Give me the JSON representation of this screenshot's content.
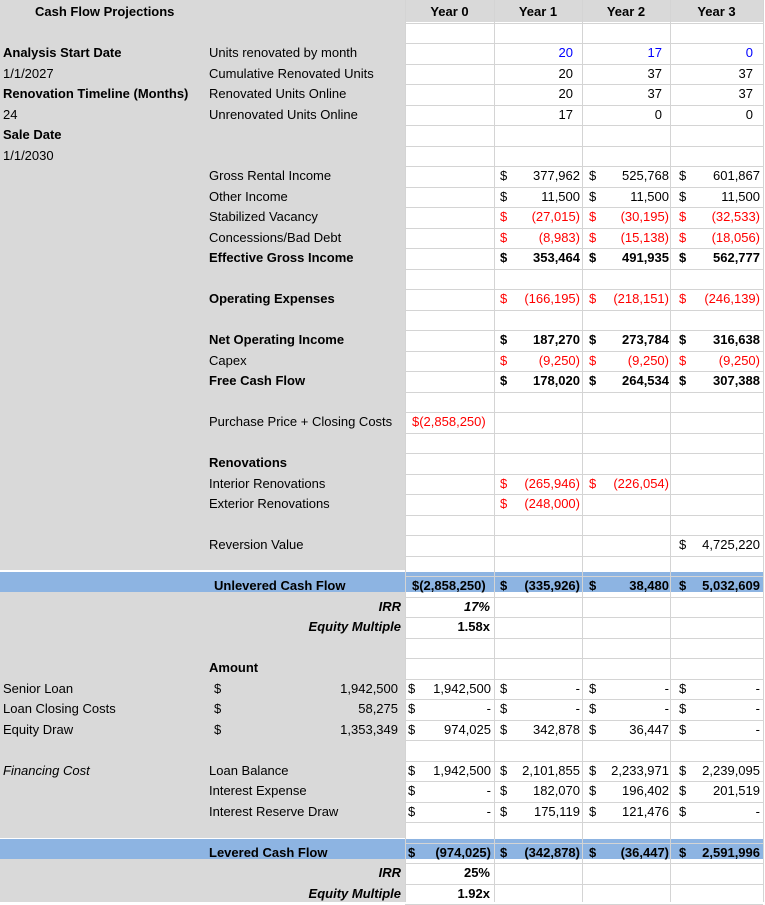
{
  "header": {
    "title": "Cash Flow Projections",
    "years": [
      "Year 0",
      "Year 1",
      "Year 2",
      "Year 3"
    ]
  },
  "assumptions": {
    "start_label": "Analysis Start Date",
    "start_value": "1/1/2027",
    "timeline_label": "Renovation Timeline (Months)",
    "timeline_value": "24",
    "sale_label": "Sale Date",
    "sale_value": "1/1/2030"
  },
  "units": [
    {
      "label": "Units renovated by month",
      "values": [
        "20",
        "17",
        "0"
      ],
      "color": "#0000ff"
    },
    {
      "label": "Cumulative Renovated Units",
      "values": [
        "20",
        "37",
        "37"
      ],
      "color": "#000000"
    },
    {
      "label": "Renovated Units Online",
      "values": [
        "20",
        "37",
        "37"
      ],
      "color": "#000000"
    },
    {
      "label": "Unrenovated Units Online",
      "values": [
        "17",
        "0",
        "0"
      ],
      "color": "#000000"
    }
  ],
  "income": [
    {
      "label": "Gross Rental Income",
      "values": [
        "377,962",
        "525,768",
        "601,867"
      ],
      "bold": false,
      "red": false
    },
    {
      "label": "Other Income",
      "values": [
        "11,500",
        "11,500",
        "11,500"
      ],
      "bold": false,
      "red": false
    },
    {
      "label": "Stabilized Vacancy",
      "values": [
        "(27,015)",
        "(30,195)",
        "(32,533)"
      ],
      "bold": false,
      "red": true
    },
    {
      "label": "Concessions/Bad Debt",
      "values": [
        "(8,983)",
        "(15,138)",
        "(18,056)"
      ],
      "bold": false,
      "red": true
    },
    {
      "label": "Effective Gross Income",
      "values": [
        "353,464",
        "491,935",
        "562,777"
      ],
      "bold": true,
      "red": false
    }
  ],
  "opex": {
    "label": "Operating Expenses",
    "values": [
      "(166,195)",
      "(218,151)",
      "(246,139)"
    ]
  },
  "noi_block": [
    {
      "label": "Net Operating Income",
      "values": [
        "187,270",
        "273,784",
        "316,638"
      ],
      "bold": true,
      "red": false
    },
    {
      "label": "Capex",
      "values": [
        "(9,250)",
        "(9,250)",
        "(9,250)"
      ],
      "bold": false,
      "red": true
    },
    {
      "label": "Free Cash Flow",
      "values": [
        "178,020",
        "264,534",
        "307,388"
      ],
      "bold": true,
      "red": false
    }
  ],
  "purchase": {
    "label": "Purchase Price + Closing Costs",
    "value": "$(2,858,250)"
  },
  "renovations": {
    "title": "Renovations",
    "interior_label": "Interior Renovations",
    "interior_y1": "(265,946)",
    "interior_y2": "(226,054)",
    "exterior_label": "Exterior Renovations",
    "exterior_y1": "(248,000)"
  },
  "reversion": {
    "label": "Reversion Value",
    "y3": "4,725,220"
  },
  "unlevered": {
    "label": "Unlevered Cash Flow",
    "y0": "$(2,858,250)",
    "y1": "(335,926)",
    "y2": "38,480",
    "y3": "5,032,609",
    "irr_label": "IRR",
    "irr_value": "17%",
    "em_label": "Equity Multiple",
    "em_value": "1.58x"
  },
  "financing": {
    "amount_header": "Amount",
    "rows": [
      {
        "label": "Senior Loan",
        "amount": "1,942,500",
        "y0": "1,942,500",
        "y1": "-",
        "y2": "-",
        "y3": "-"
      },
      {
        "label": "Loan Closing Costs",
        "amount": "58,275",
        "y0": "-",
        "y1": "-",
        "y2": "-",
        "y3": "-"
      },
      {
        "label": "Equity Draw",
        "amount": "1,353,349",
        "y0": "974,025",
        "y1": "342,878",
        "y2": "36,447",
        "y3": "-"
      }
    ],
    "cost_label": "Financing Cost",
    "cost_rows": [
      {
        "label": "Loan Balance",
        "y0": "1,942,500",
        "y1": "2,101,855",
        "y2": "2,233,971",
        "y3": "2,239,095"
      },
      {
        "label": "Interest Expense",
        "y0": "-",
        "y1": "182,070",
        "y2": "196,402",
        "y3": "201,519"
      },
      {
        "label": "Interest Reserve Draw",
        "y0": "-",
        "y1": "175,119",
        "y2": "121,476",
        "y3": "-"
      }
    ]
  },
  "levered": {
    "label": "Levered Cash Flow",
    "y0": "(974,025)",
    "y1": "(342,878)",
    "y2": "(36,447)",
    "y3": "2,591,996",
    "irr_label": "IRR",
    "irr_value": "25%",
    "em_label": "Equity Multiple",
    "em_value": "1.92x"
  },
  "colors": {
    "grey": "#d9d9d9",
    "highlight": "#8db4e2",
    "negative": "#ff0000",
    "input": "#0000ff"
  }
}
